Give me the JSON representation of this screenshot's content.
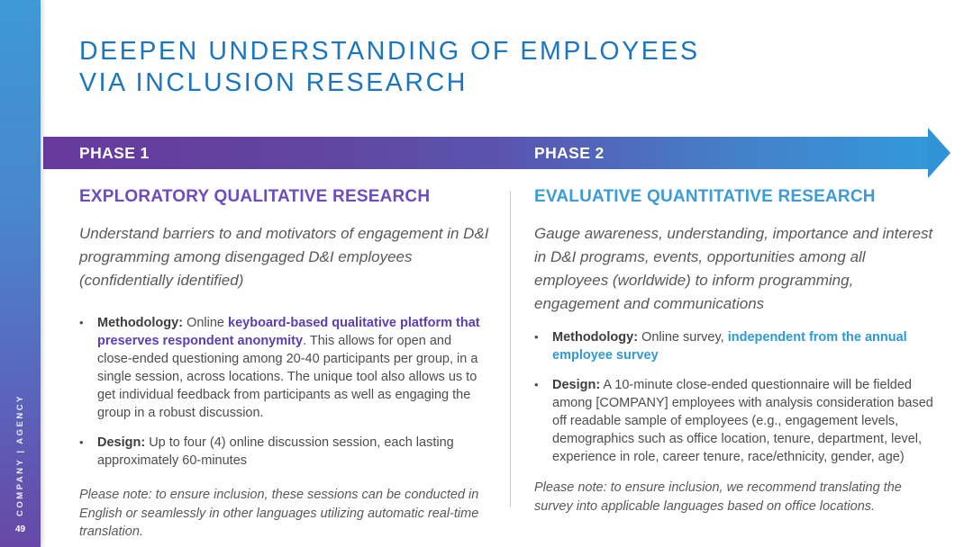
{
  "slide": {
    "title": {
      "line1": "DEEPEN UNDERSTANDING OF EMPLOYEES",
      "line2": "VIA INCLUSION RESEARCH"
    },
    "page_number": "49",
    "rail_brand": "COMPANY  |  AGENCY"
  },
  "banner": {
    "phase1": "PHASE 1",
    "phase2": "PHASE 2"
  },
  "columns": {
    "left": {
      "heading": "EXPLORATORY QUALITATIVE RESEARCH",
      "intro": "Understand barriers to and motivators of engagement in D&I programming among disengaged D&I employees (confidentially identified)",
      "bullets": [
        {
          "label": "Methodology:",
          "pre": " Online ",
          "highlight": "keyboard-based qualitative platform that preserves respondent anonymity",
          "post": ". This allows for open and close-ended questioning among 20-40 participants per group, in a single session, across locations. The unique tool also allows us to get individual feedback from participants as well as engaging the group in a robust discussion."
        },
        {
          "label": "Design:",
          "pre": " Up to four (4) online discussion session, each lasting approximately 60-minutes",
          "highlight": "",
          "post": ""
        }
      ],
      "note": "Please note: to ensure inclusion, these sessions can be conducted in English or seamlessly in other languages utilizing automatic real-time translation."
    },
    "right": {
      "heading": "EVALUATIVE QUANTITATIVE RESEARCH",
      "intro": "Gauge awareness, understanding, importance and interest in D&I programs, events, opportunities among all employees (worldwide) to inform programming, engagement and communications",
      "bullets": [
        {
          "label": "Methodology:",
          "pre": " Online survey, ",
          "highlight": "independent from the annual employee survey",
          "post": ""
        },
        {
          "label": "Design:",
          "pre": " A 10-minute close-ended questionnaire will be fielded among [COMPANY] employees with analysis consideration based off readable sample of employees (e.g., engagement levels, demographics such as office location, tenure, department, level, experience in role, career tenure, race/ethnicity, gender, age)",
          "highlight": "",
          "post": ""
        }
      ],
      "note": "Please note: to ensure inclusion, we recommend translating the survey into applicable languages based on office locations."
    }
  },
  "colors": {
    "title_blue": "#1b76bf",
    "heading_purple": "#6e4cbe",
    "heading_blue": "#3c9cd7",
    "banner_gradient_start": "#67399f",
    "banner_gradient_end": "#3398db",
    "body_gray": "#4d4d4f"
  }
}
